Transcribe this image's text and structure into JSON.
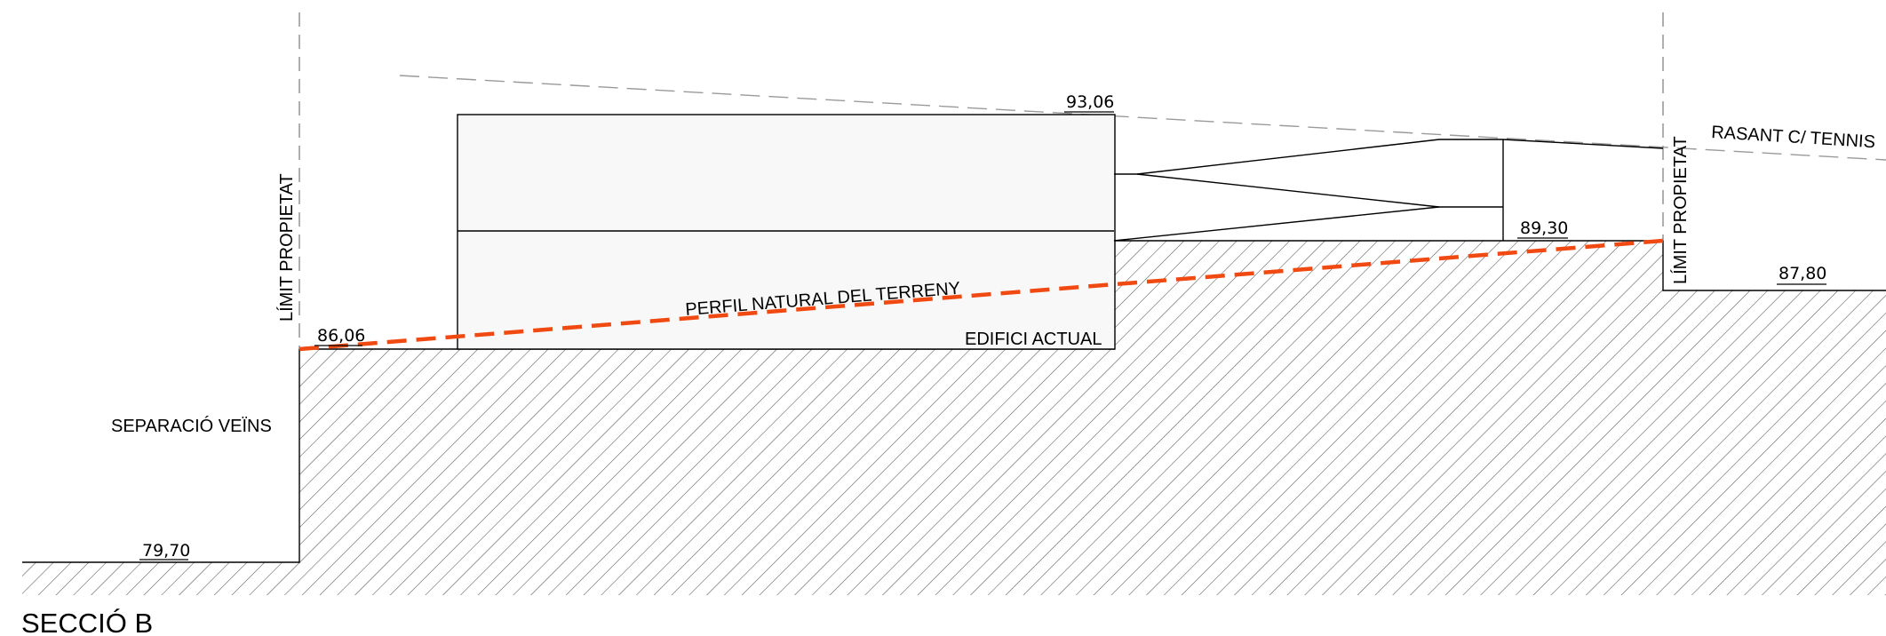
{
  "section": {
    "title": "SECCIÓ B"
  },
  "labels": {
    "limit_left": "LÍMIT PROPIETAT",
    "limit_right": "LÍMIT PROPIETAT",
    "rasant": "RASANT C/ TENNIS",
    "perfil": "PERFIL NATURAL DEL TERRENY",
    "edifici": "EDIFICI ACTUAL",
    "separacio": "SEPARACIÓ VEÏNS"
  },
  "levels": {
    "top_building": "93,06",
    "terrace": "89,30",
    "street": "87,80",
    "plot_left": "86,06",
    "neighbour": "79,70"
  },
  "colors": {
    "terrain_profile": "#f04a12",
    "building_fill": "#f8f8f8",
    "hatch": "#555555",
    "guide": "#9a9a9a"
  }
}
